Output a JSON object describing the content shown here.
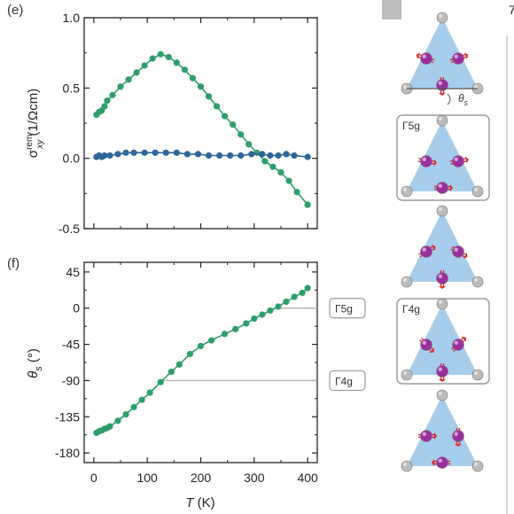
{
  "colors": {
    "green": "#2e9e6b",
    "blue": "#2f6699",
    "guide": "#b5b5b5",
    "axis": "#222222",
    "triangle": "#a7cdec",
    "atom_grey": "#bcbcbc",
    "atom_purple": "#9b2f9e",
    "spin_red": "#d92a2a",
    "box_border": "#9a9a9a",
    "top_right_box": "#bdbdbd"
  },
  "chart_data": [
    {
      "panel": "(e)",
      "type": "line",
      "ylabel": "σxy rem (1/Ωcm)",
      "ylabel_parts": {
        "main": "σ",
        "sup": "rem",
        "sub": "xy",
        "unit": " (1/Ωcm)"
      },
      "xlim": [
        -18,
        418
      ],
      "ylim": [
        -0.5,
        1.0
      ],
      "y_ticks": [
        {
          "value": 1.0,
          "label": "1.0"
        },
        {
          "value": 0.5,
          "label": "0.5"
        },
        {
          "value": 0.0,
          "label": "0.0"
        },
        {
          "value": -0.5,
          "label": "-0.5"
        }
      ],
      "x_ticks": [
        0,
        100,
        200,
        300,
        400
      ],
      "series": [
        {
          "color_key": "green",
          "x": [
            5,
            10,
            15,
            20,
            25,
            35,
            50,
            65,
            80,
            95,
            110,
            125,
            140,
            155,
            170,
            185,
            200,
            215,
            230,
            245,
            260,
            275,
            290,
            305,
            320,
            335,
            350,
            365,
            380,
            400
          ],
          "y": [
            0.31,
            0.33,
            0.34,
            0.37,
            0.41,
            0.45,
            0.51,
            0.56,
            0.61,
            0.66,
            0.71,
            0.74,
            0.72,
            0.68,
            0.63,
            0.57,
            0.51,
            0.44,
            0.37,
            0.3,
            0.24,
            0.17,
            0.1,
            0.04,
            -0.02,
            -0.06,
            -0.1,
            -0.16,
            -0.24,
            -0.33
          ]
        },
        {
          "color_key": "blue",
          "x": [
            5,
            10,
            15,
            20,
            30,
            45,
            60,
            75,
            95,
            115,
            135,
            155,
            175,
            195,
            215,
            235,
            255,
            275,
            295,
            315,
            330,
            345,
            360,
            375,
            400
          ],
          "y": [
            0.01,
            0.02,
            0.01,
            0.02,
            0.02,
            0.03,
            0.04,
            0.04,
            0.04,
            0.04,
            0.04,
            0.04,
            0.03,
            0.03,
            0.02,
            0.02,
            0.02,
            0.02,
            0.03,
            0.03,
            0.02,
            0.02,
            0.03,
            0.02,
            0.01
          ]
        }
      ]
    },
    {
      "panel": "(f)",
      "type": "line",
      "ylabel": "θs (°)",
      "ylabel_parts": {
        "main": "θ",
        "sub": "s",
        "unit": " (°)"
      },
      "xlabel": "T (K)",
      "xlim": [
        -18,
        418
      ],
      "ylim": [
        -192,
        57
      ],
      "y_ticks": [
        {
          "value": 45,
          "label": "45"
        },
        {
          "value": 0,
          "label": "0"
        },
        {
          "value": -45,
          "label": "-45"
        },
        {
          "value": -90,
          "label": "-90"
        },
        {
          "value": -135,
          "label": "-135"
        },
        {
          "value": -180,
          "label": "-180"
        }
      ],
      "x_ticks": [
        0,
        100,
        200,
        300,
        400
      ],
      "series": [
        {
          "color_key": "green",
          "x": [
            5,
            10,
            15,
            20,
            25,
            30,
            45,
            60,
            75,
            90,
            105,
            125,
            145,
            160,
            180,
            200,
            220,
            245,
            265,
            285,
            300,
            315,
            330,
            345,
            360,
            375,
            390,
            400
          ],
          "y": [
            -155,
            -153,
            -152,
            -150,
            -149,
            -147,
            -140,
            -132,
            -123,
            -114,
            -105,
            -92,
            -79,
            -70,
            -57,
            -47,
            -40,
            -32,
            -26,
            -19,
            -13,
            -8,
            -3,
            2,
            8,
            14,
            19,
            25
          ]
        }
      ],
      "guides": [
        {
          "level": -90,
          "x_start": 120,
          "label": "Γ4g"
        },
        {
          "level": 0,
          "x_start": 345,
          "label": "Γ5g"
        }
      ]
    }
  ],
  "text": {
    "label_e": "(e)",
    "label_f": "(f)",
    "xlabel_T": "T",
    "xlabel_unit": " (K)",
    "gamma": "Γ",
    "sup5g": "5g",
    "sup4g": "4g",
    "theta": "θ",
    "sub_s": "s",
    "corner_char": "7"
  },
  "spin_panels": [
    {
      "name": "spin-panel-theta",
      "boxed": false,
      "caption": ""
    },
    {
      "name": "spin-panel-gamma5g",
      "boxed": true,
      "caption": "Γ5g"
    },
    {
      "name": "spin-panel-intermediate",
      "boxed": false,
      "caption": ""
    },
    {
      "name": "spin-panel-gamma4g",
      "boxed": true,
      "caption": "Γ4g"
    },
    {
      "name": "spin-panel-bottom",
      "boxed": false,
      "caption": ""
    }
  ]
}
